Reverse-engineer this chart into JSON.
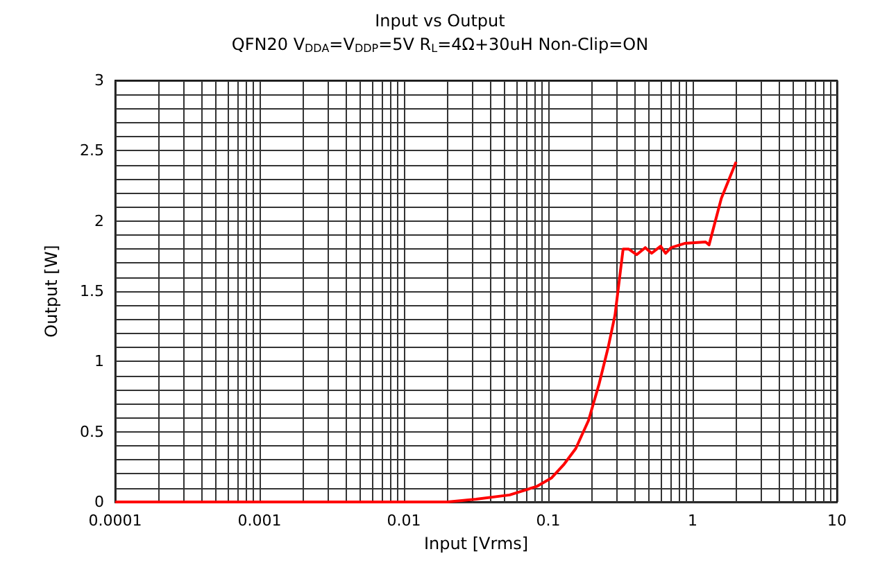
{
  "chart_data": {
    "type": "line",
    "title": "Input vs Output",
    "subtitle": "QFN20 V$_{DDA}$=V$_{DDP}$=5V R$_{L}$=4Ω+30uH Non-Clip=ON",
    "xlabel": "Input [Vrms]",
    "ylabel": "Output [W]",
    "log": "x",
    "grid": true,
    "marker": "none",
    "line_style": "solid",
    "xlim": [
      0.0001,
      10
    ],
    "xticks": [
      {
        "value": 0.0001,
        "label": "0.0001"
      },
      {
        "value": 0.0002,
        "label": null
      },
      {
        "value": 0.0003,
        "label": null
      },
      {
        "value": 0.0004,
        "label": null
      },
      {
        "value": 0.0005,
        "label": null
      },
      {
        "value": 0.0006,
        "label": null
      },
      {
        "value": 0.0007,
        "label": null
      },
      {
        "value": 0.0008,
        "label": null
      },
      {
        "value": 0.0009,
        "label": null
      },
      {
        "value": 0.001,
        "label": "0.001"
      },
      {
        "value": 0.002,
        "label": null
      },
      {
        "value": 0.003,
        "label": null
      },
      {
        "value": 0.004,
        "label": null
      },
      {
        "value": 0.005,
        "label": null
      },
      {
        "value": 0.006,
        "label": null
      },
      {
        "value": 0.007,
        "label": null
      },
      {
        "value": 0.008,
        "label": null
      },
      {
        "value": 0.009,
        "label": null
      },
      {
        "value": 0.01,
        "label": "0.01"
      },
      {
        "value": 0.02,
        "label": null
      },
      {
        "value": 0.03,
        "label": null
      },
      {
        "value": 0.04,
        "label": null
      },
      {
        "value": 0.05,
        "label": null
      },
      {
        "value": 0.06,
        "label": null
      },
      {
        "value": 0.07,
        "label": null
      },
      {
        "value": 0.08,
        "label": null
      },
      {
        "value": 0.09,
        "label": null
      },
      {
        "value": 0.1,
        "label": "0.1"
      },
      {
        "value": 0.2,
        "label": null
      },
      {
        "value": 0.3,
        "label": null
      },
      {
        "value": 0.4,
        "label": null
      },
      {
        "value": 0.5,
        "label": null
      },
      {
        "value": 0.6,
        "label": null
      },
      {
        "value": 0.7,
        "label": null
      },
      {
        "value": 0.8,
        "label": null
      },
      {
        "value": 0.9,
        "label": null
      },
      {
        "value": 1,
        "label": "1"
      },
      {
        "value": 2,
        "label": null
      },
      {
        "value": 3,
        "label": null
      },
      {
        "value": 4,
        "label": null
      },
      {
        "value": 5,
        "label": null
      },
      {
        "value": 6,
        "label": null
      },
      {
        "value": 7,
        "label": null
      },
      {
        "value": 8,
        "label": null
      },
      {
        "value": 9,
        "label": null
      },
      {
        "value": 10,
        "label": "10"
      }
    ],
    "ylim": [
      0,
      3
    ],
    "yticks": [
      0,
      {
        "value": 0.1,
        "label": null
      },
      {
        "value": 0.2,
        "label": null
      },
      {
        "value": 0.3,
        "label": null
      },
      {
        "value": 0.4,
        "label": null
      },
      0.5,
      {
        "value": 0.6,
        "label": null
      },
      {
        "value": 0.7,
        "label": null
      },
      {
        "value": 0.8,
        "label": null
      },
      {
        "value": 0.9,
        "label": null
      },
      1,
      {
        "value": 1.1,
        "label": null
      },
      {
        "value": 1.2,
        "label": null
      },
      {
        "value": 1.3,
        "label": null
      },
      {
        "value": 1.4,
        "label": null
      },
      1.5,
      {
        "value": 1.6,
        "label": null
      },
      {
        "value": 1.7,
        "label": null
      },
      {
        "value": 1.8,
        "label": null
      },
      {
        "value": 1.9,
        "label": null
      },
      2,
      {
        "value": 2.1,
        "label": null
      },
      {
        "value": 2.2,
        "label": null
      },
      {
        "value": 2.3,
        "label": null
      },
      {
        "value": 2.4,
        "label": null
      },
      2.5,
      {
        "value": 2.6,
        "label": null
      },
      {
        "value": 2.7,
        "label": null
      },
      {
        "value": 2.8,
        "label": null
      },
      {
        "value": 2.9,
        "label": null
      },
      3
    ],
    "series": [
      {
        "color": "#ff0000",
        "x": [
          0.0001,
          0.001,
          0.01,
          0.02,
          0.0316,
          0.054,
          0.083,
          0.105,
          0.129,
          0.155,
          0.19,
          0.225,
          0.26,
          0.29,
          0.33,
          0.36,
          0.41,
          0.47,
          0.52,
          0.6,
          0.65,
          0.71,
          0.88,
          1.23,
          1.3,
          1.58,
          2.0
        ],
        "values": [
          0,
          0,
          0,
          0,
          0.02,
          0.05,
          0.11,
          0.17,
          0.27,
          0.38,
          0.58,
          0.84,
          1.1,
          1.33,
          1.8,
          1.8,
          1.76,
          1.81,
          1.77,
          1.82,
          1.77,
          1.81,
          1.84,
          1.85,
          1.83,
          2.16,
          2.42
        ]
      }
    ]
  }
}
